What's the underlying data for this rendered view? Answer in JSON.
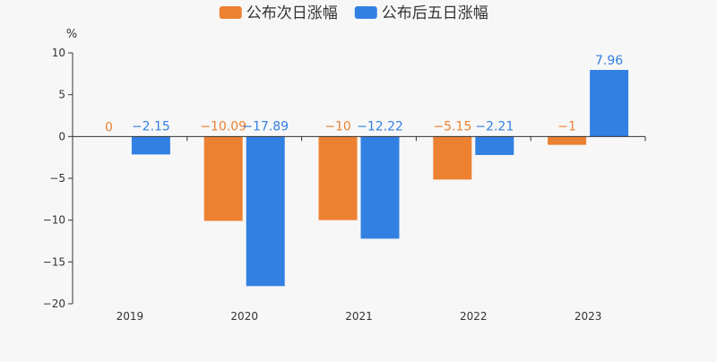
{
  "chart_data": {
    "type": "bar",
    "categories": [
      "2019",
      "2020",
      "2021",
      "2022",
      "2023"
    ],
    "series": [
      {
        "name": "公布次日涨幅",
        "color": "#ed8132",
        "values": [
          0,
          -10.09,
          -10,
          -5.15,
          -1
        ],
        "labels": [
          "0",
          "−10.09",
          "−10",
          "−5.15",
          "−1"
        ]
      },
      {
        "name": "公布后五日涨幅",
        "color": "#3380e3",
        "values": [
          -2.15,
          -17.89,
          -12.22,
          -2.21,
          7.96
        ],
        "labels": [
          "−2.15",
          "−17.89",
          "−12.22",
          "−2.21",
          "7.96"
        ]
      }
    ],
    "ylabel": "%",
    "ylim": [
      -20,
      10
    ],
    "yticks": [
      10,
      5,
      0,
      -5,
      -10,
      -15,
      -20
    ],
    "ytick_labels": [
      "10",
      "5",
      "0",
      "−5",
      "−10",
      "−15",
      "−20"
    ],
    "legend_position": "top-center",
    "grid": false
  }
}
